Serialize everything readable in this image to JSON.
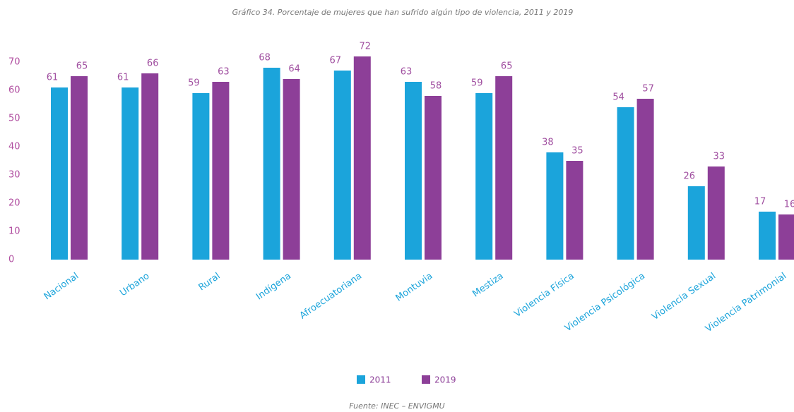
{
  "chart_data": {
    "type": "bar",
    "title": "Gráfico 34. Porcentaje de mujeres que han sufrido algún tipo de violencia, 2011 y 2019",
    "source": "Fuente: INEC – ENVIGMU",
    "categories": [
      "Nacional",
      "Urbano",
      "Rural",
      "Indígena",
      "Afroecuatoriana",
      "Montuvia",
      "Mestiza",
      "Violencia Física",
      "Violencia Psicológica",
      "Violencia Sexual",
      "Violencia Patrimonial"
    ],
    "series": [
      {
        "name": "2011",
        "color": "#1ba4db",
        "values": [
          61,
          61,
          59,
          68,
          67,
          63,
          59,
          38,
          54,
          26,
          17
        ]
      },
      {
        "name": "2019",
        "color": "#8d3f98",
        "values": [
          65,
          66,
          63,
          64,
          72,
          58,
          65,
          35,
          57,
          33,
          16
        ]
      }
    ],
    "ylim": [
      0,
      80
    ],
    "yticks": [
      0,
      10,
      20,
      30,
      40,
      50,
      60,
      70
    ],
    "grid": false,
    "legend": "bottom"
  }
}
